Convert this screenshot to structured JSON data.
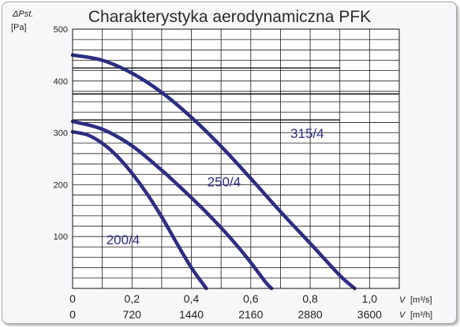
{
  "chart_data": {
    "type": "line",
    "title": "Charakterystyka aerodynamiczna PFK",
    "ylabel": "ΔPst.",
    "yunit": "[Pa]",
    "xlabel": "V",
    "xunits": [
      "[m³/s]",
      "[m³/h]"
    ],
    "xlim": [
      0,
      1.1
    ],
    "ylim": [
      0,
      500
    ],
    "xticks_primary": [
      "0",
      "0,2",
      "0,4",
      "0,6",
      "0,8",
      "1,0"
    ],
    "xticks_secondary": [
      "0",
      "720",
      "1440",
      "2160",
      "2880",
      "3600"
    ],
    "yticks": [
      "100",
      "200",
      "300",
      "400",
      "500"
    ],
    "grid": true,
    "reference_lines": [
      {
        "y": 425,
        "x_end": 0.9
      },
      {
        "y": 375,
        "x_end": 1.1
      },
      {
        "y": 325,
        "x_end": 0.9
      }
    ],
    "series": [
      {
        "name": "200/4",
        "color": "#2b2e82",
        "x": [
          0,
          0.05,
          0.1,
          0.15,
          0.2,
          0.25,
          0.3,
          0.35,
          0.4,
          0.45
        ],
        "y": [
          302,
          296,
          280,
          255,
          222,
          183,
          138,
          88,
          40,
          0
        ]
      },
      {
        "name": "250/4",
        "color": "#2b2e82",
        "x": [
          0,
          0.1,
          0.2,
          0.3,
          0.35,
          0.4,
          0.45,
          0.5,
          0.55,
          0.6,
          0.65,
          0.67
        ],
        "y": [
          322,
          307,
          275,
          228,
          202,
          175,
          147,
          117,
          85,
          50,
          12,
          0
        ]
      },
      {
        "name": "315/4",
        "color": "#2b2e82",
        "x": [
          0,
          0.1,
          0.2,
          0.3,
          0.4,
          0.5,
          0.6,
          0.7,
          0.8,
          0.9,
          0.95
        ],
        "y": [
          450,
          440,
          415,
          378,
          330,
          274,
          212,
          148,
          87,
          25,
          0
        ]
      }
    ]
  }
}
